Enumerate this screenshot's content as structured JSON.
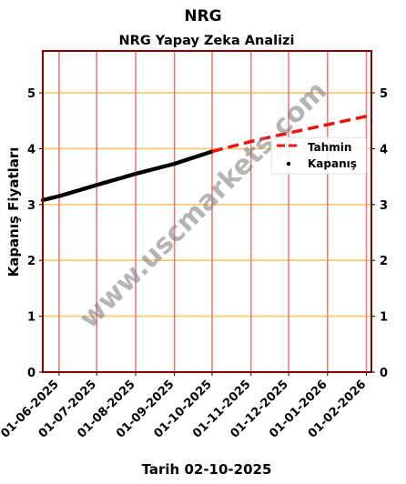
{
  "chart_data": {
    "type": "line",
    "title": "NRG",
    "subtitle": "NRG Yapay Zeka Analizi",
    "xlabel": "Tarih 02-10-2025",
    "ylabel": "Kapanış Fiyatları",
    "ylim": [
      0,
      5.75
    ],
    "yticks": [
      "0",
      "1",
      "2",
      "3",
      "4",
      "5"
    ],
    "ytick_values": [
      0,
      1,
      2,
      3,
      4,
      5
    ],
    "x_range": [
      "2025-05-19",
      "2026-02-05"
    ],
    "xticks": [
      "01-06-2025",
      "01-07-2025",
      "01-08-2025",
      "01-09-2025",
      "01-10-2025",
      "01-11-2025",
      "01-12-2025",
      "01-01-2026",
      "01-02-2026"
    ],
    "xtick_dates": [
      "2025-06-01",
      "2025-07-01",
      "2025-08-01",
      "2025-09-01",
      "2025-10-01",
      "2025-11-01",
      "2025-12-01",
      "2026-01-01",
      "2026-02-01"
    ],
    "grid": "vertical red lines, horizontal orange lines",
    "legend_position": "right, middle-upper",
    "series": [
      {
        "name": "Kapanış",
        "style": "black dots",
        "color": "#000000",
        "x": [
          "2025-05-19",
          "2025-06-01",
          "2025-07-01",
          "2025-08-01",
          "2025-09-01",
          "2025-10-01"
        ],
        "y": [
          3.08,
          3.15,
          3.35,
          3.55,
          3.73,
          3.95
        ]
      },
      {
        "name": "Tahmin",
        "style": "red dashed",
        "color": "#ee1111",
        "x": [
          "2025-10-01",
          "2025-11-01",
          "2025-12-01",
          "2026-01-01",
          "2026-02-05"
        ],
        "y": [
          3.95,
          4.13,
          4.28,
          4.43,
          4.6
        ]
      }
    ],
    "watermark": "www.uscmarkets.com"
  }
}
